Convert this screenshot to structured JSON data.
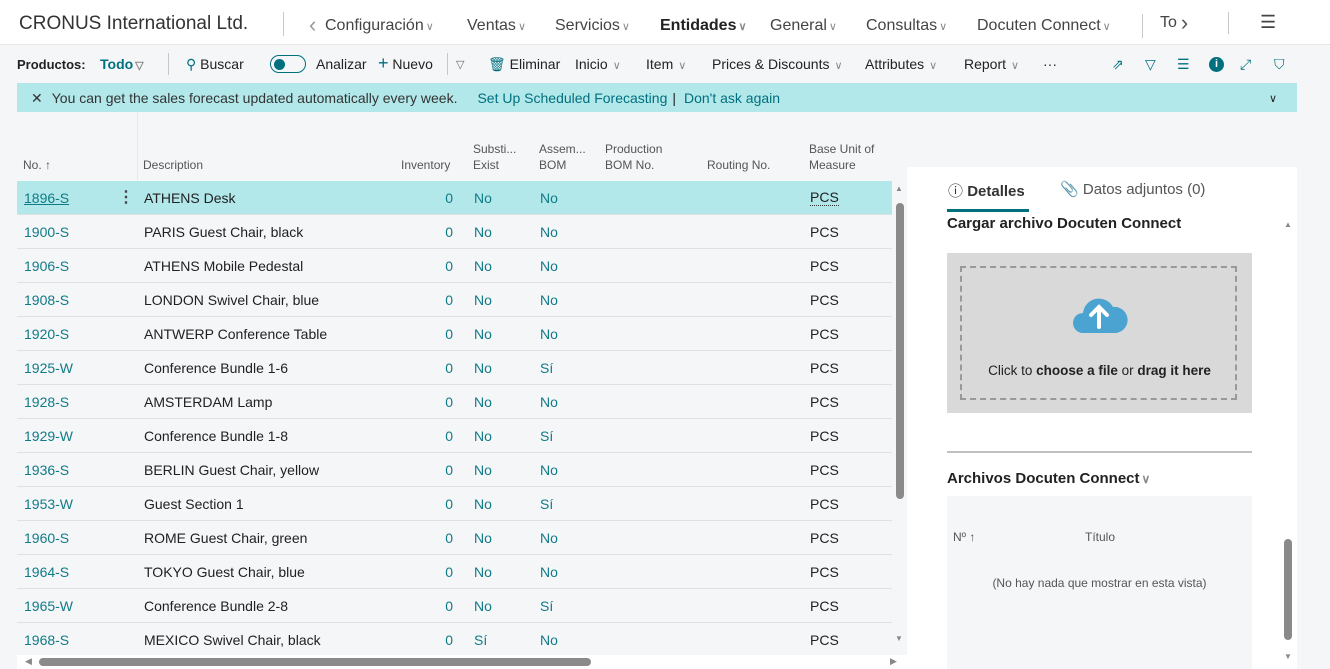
{
  "header": {
    "company": "CRONUS International Ltd.",
    "nav": [
      {
        "label": "Configuración",
        "bold": false
      },
      {
        "label": "Ventas",
        "bold": false
      },
      {
        "label": "Servicios",
        "bold": false
      },
      {
        "label": "Entidades",
        "bold": true
      },
      {
        "label": "General",
        "bold": false
      },
      {
        "label": "Consultas",
        "bold": false
      },
      {
        "label": "Docuten Connect",
        "bold": false
      }
    ],
    "overflow": "To"
  },
  "toolbar": {
    "page": "Productos:",
    "view": "Todo",
    "search": "Buscar",
    "analyze": "Analizar",
    "new": "Nuevo",
    "delete": "Eliminar",
    "menus": [
      "Inicio",
      "Item",
      "Prices & Discounts",
      "Attributes",
      "Report"
    ],
    "more": "···"
  },
  "banner": {
    "message": "You can get the sales forecast updated automatically every week.",
    "action1": "Set Up Scheduled Forecasting",
    "sep": "|",
    "action2": "Don't ask again"
  },
  "table": {
    "headers": {
      "no": "No. ↑",
      "description": "Description",
      "inventory": "Inventory",
      "subst1": "Substi...",
      "subst2": "Exist",
      "assem1": "Assem...",
      "assem2": "BOM",
      "prod1": "Production",
      "prod2": "BOM No.",
      "routing": "Routing No.",
      "base1": "Base Unit of",
      "base2": "Measure"
    },
    "rows": [
      {
        "no": "1896-S",
        "desc": "ATHENS Desk",
        "inv": "0",
        "subst": "No",
        "assem": "No",
        "unit": "PCS",
        "selected": true
      },
      {
        "no": "1900-S",
        "desc": "PARIS Guest Chair, black",
        "inv": "0",
        "subst": "No",
        "assem": "No",
        "unit": "PCS"
      },
      {
        "no": "1906-S",
        "desc": "ATHENS Mobile Pedestal",
        "inv": "0",
        "subst": "No",
        "assem": "No",
        "unit": "PCS"
      },
      {
        "no": "1908-S",
        "desc": "LONDON Swivel Chair, blue",
        "inv": "0",
        "subst": "No",
        "assem": "No",
        "unit": "PCS"
      },
      {
        "no": "1920-S",
        "desc": "ANTWERP Conference Table",
        "inv": "0",
        "subst": "No",
        "assem": "No",
        "unit": "PCS"
      },
      {
        "no": "1925-W",
        "desc": "Conference Bundle 1-6",
        "inv": "0",
        "subst": "No",
        "assem": "Sí",
        "unit": "PCS"
      },
      {
        "no": "1928-S",
        "desc": "AMSTERDAM Lamp",
        "inv": "0",
        "subst": "No",
        "assem": "No",
        "unit": "PCS"
      },
      {
        "no": "1929-W",
        "desc": "Conference Bundle 1-8",
        "inv": "0",
        "subst": "No",
        "assem": "Sí",
        "unit": "PCS"
      },
      {
        "no": "1936-S",
        "desc": "BERLIN Guest Chair, yellow",
        "inv": "0",
        "subst": "No",
        "assem": "No",
        "unit": "PCS"
      },
      {
        "no": "1953-W",
        "desc": "Guest Section 1",
        "inv": "0",
        "subst": "No",
        "assem": "Sí",
        "unit": "PCS"
      },
      {
        "no": "1960-S",
        "desc": "ROME Guest Chair, green",
        "inv": "0",
        "subst": "No",
        "assem": "No",
        "unit": "PCS"
      },
      {
        "no": "1964-S",
        "desc": "TOKYO Guest Chair, blue",
        "inv": "0",
        "subst": "No",
        "assem": "No",
        "unit": "PCS"
      },
      {
        "no": "1965-W",
        "desc": "Conference Bundle 2-8",
        "inv": "0",
        "subst": "No",
        "assem": "Sí",
        "unit": "PCS"
      },
      {
        "no": "1968-S",
        "desc": "MEXICO Swivel Chair, black",
        "inv": "0",
        "subst": "Sí",
        "assem": "No",
        "unit": "PCS"
      }
    ]
  },
  "factbox": {
    "tab_details": "Detalles",
    "tab_attachments": "Datos adjuntos (0)",
    "upload_title": "Cargar archivo Docuten Connect",
    "drop_pre": "Click to ",
    "drop_b1": "choose a file",
    "drop_mid": " or ",
    "drop_b2": "drag it here",
    "files_title": "Archivos Docuten Connect",
    "col_no": "Nº ↑",
    "col_title": "Título",
    "empty": "(No hay nada que mostrar en esta vista)"
  },
  "colors": {
    "accent": "#00707f",
    "selected_row": "#b2e8ea",
    "upload_icon": "#4aa3d0"
  }
}
